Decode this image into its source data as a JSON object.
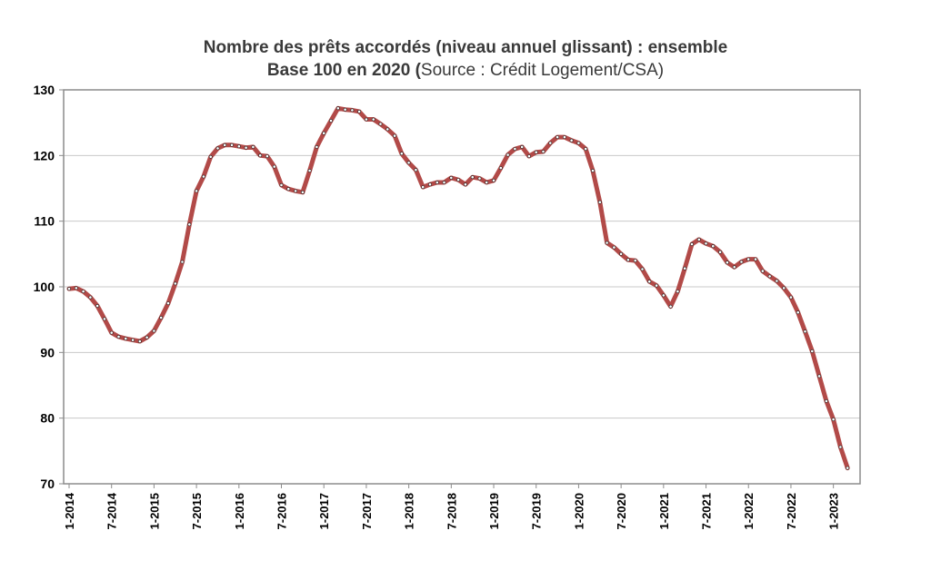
{
  "chart_data": {
    "type": "line",
    "title": "Nombre des prêts accordés (niveau annuel glissant) : ensemble",
    "subtitle_bold": "Base 100 en 2020 (",
    "subtitle_source": "Source : Crédit Logement/CSA)",
    "ylim": [
      70,
      130
    ],
    "yticks": [
      70,
      80,
      90,
      100,
      110,
      120,
      130
    ],
    "grid": true,
    "x_tick_labels": [
      "1-2014",
      "7-2014",
      "1-2015",
      "7-2015",
      "1-2016",
      "7-2016",
      "1-2017",
      "7-2017",
      "1-2018",
      "7-2018",
      "1-2019",
      "7-2019",
      "1-2020",
      "7-2020",
      "1-2021",
      "7-2021",
      "1-2022",
      "7-2022",
      "1-2023"
    ],
    "x_tick_steps": 6,
    "x_months": 112,
    "line_color": "#b24a48",
    "marker_color": "#ffffff",
    "series": [
      {
        "values": [
          99.7,
          99.8,
          99.3,
          98.4,
          97.1,
          95.1,
          93.0,
          92.4,
          92.1,
          91.9,
          91.7,
          92.3,
          93.3,
          95.3,
          97.5,
          100.5,
          103.8,
          109.5,
          114.6,
          116.8,
          119.8,
          121.1,
          121.6,
          121.6,
          121.4,
          121.2,
          121.3,
          120.0,
          119.9,
          118.3,
          115.5,
          114.9,
          114.6,
          114.4,
          117.7,
          121.3,
          123.4,
          125.3,
          127.2,
          127.0,
          126.9,
          126.7,
          125.5,
          125.5,
          124.8,
          124.0,
          123.0,
          120.3,
          118.9,
          117.8,
          115.2,
          115.6,
          115.9,
          115.9,
          116.6,
          116.3,
          115.6,
          116.7,
          116.5,
          115.9,
          116.2,
          118.1,
          120.1,
          121.0,
          121.3,
          119.9,
          120.5,
          120.6,
          121.9,
          122.8,
          122.8,
          122.3,
          121.9,
          121.0,
          117.7,
          112.9,
          106.7,
          106.0,
          105.0,
          104.1,
          104.0,
          102.7,
          100.8,
          100.2,
          98.7,
          97.0,
          99.3,
          102.8,
          106.5,
          107.2,
          106.6,
          106.2,
          105.3,
          103.7,
          103.0,
          103.8,
          104.2,
          104.2,
          102.4,
          101.6,
          100.9,
          99.8,
          98.4,
          96.1,
          93.2,
          90.2,
          86.4,
          82.6,
          79.8,
          75.6,
          72.4
        ]
      }
    ]
  }
}
